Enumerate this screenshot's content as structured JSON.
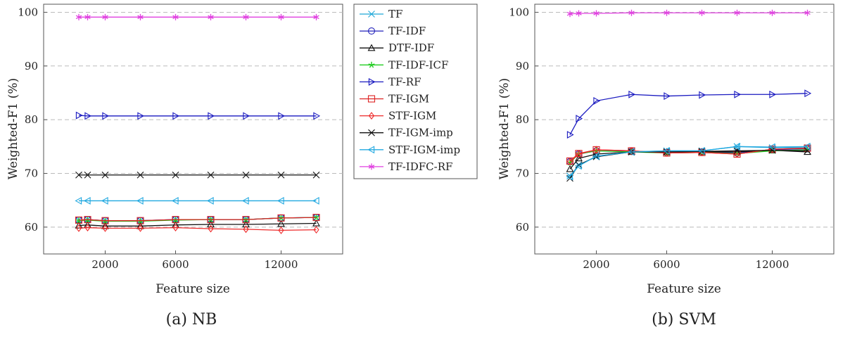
{
  "colors": {
    "TF": "#1ea7d8",
    "TF-IDF": "#2222bb",
    "DTF-IDF": "#111111",
    "TF-IDF-ICF": "#22cc22",
    "TF-RF": "#1a1ac0",
    "TF-IGM": "#dd2222",
    "STF-IGM": "#ee2a2a",
    "TF-IGM-imp": "#111111",
    "STF-IGM-imp": "#20a8e0",
    "TF-IDFC-RF": "#e040e0"
  },
  "legend": {
    "entries": [
      {
        "name": "TF",
        "marker": "x"
      },
      {
        "name": "TF-IDF",
        "marker": "circle"
      },
      {
        "name": "DTF-IDF",
        "marker": "triangle-up"
      },
      {
        "name": "TF-IDF-ICF",
        "marker": "star"
      },
      {
        "name": "TF-RF",
        "marker": "triangle-right"
      },
      {
        "name": "TF-IGM",
        "marker": "square"
      },
      {
        "name": "STF-IGM",
        "marker": "diamond"
      },
      {
        "name": "TF-IGM-imp",
        "marker": "x"
      },
      {
        "name": "STF-IGM-imp",
        "marker": "triangle-left"
      },
      {
        "name": "TF-IDFC-RF",
        "marker": "asterisk"
      }
    ]
  },
  "chart_data": [
    {
      "type": "line",
      "caption": "(a) NB",
      "xlabel": "Feature size",
      "ylabel": "Weighted-F1 (%)",
      "xlim": [
        -1500,
        15500
      ],
      "ylim": [
        55,
        101.5
      ],
      "xticks": [
        2000,
        6000,
        12000
      ],
      "yticks": [
        60,
        70,
        80,
        90,
        100
      ],
      "grid": "horizontal-dashed",
      "x": [
        500,
        1000,
        2000,
        4000,
        6000,
        8000,
        10000,
        12000,
        14000
      ],
      "series": [
        {
          "name": "TF",
          "marker": "x",
          "values": [
            61.3,
            61.4,
            61.2,
            61.2,
            61.4,
            61.4,
            61.4,
            61.7,
            61.8
          ]
        },
        {
          "name": "TF-IDF",
          "marker": "circle",
          "values": [
            61.3,
            61.4,
            61.2,
            61.2,
            61.4,
            61.4,
            61.4,
            61.7,
            61.8
          ]
        },
        {
          "name": "DTF-IDF",
          "marker": "triangle-up",
          "values": [
            60.3,
            60.4,
            60.2,
            60.2,
            60.4,
            60.5,
            60.5,
            60.6,
            60.7
          ]
        },
        {
          "name": "TF-IDF-ICF",
          "marker": "star",
          "values": [
            61.2,
            61.3,
            61.1,
            61.1,
            61.3,
            61.4,
            61.4,
            61.7,
            61.8
          ]
        },
        {
          "name": "TF-RF",
          "marker": "triangle-right",
          "values": [
            80.8,
            80.7,
            80.7,
            80.7,
            80.7,
            80.7,
            80.7,
            80.7,
            80.7
          ]
        },
        {
          "name": "TF-IGM",
          "marker": "square",
          "values": [
            61.3,
            61.4,
            61.2,
            61.2,
            61.4,
            61.4,
            61.4,
            61.7,
            61.8
          ]
        },
        {
          "name": "STF-IGM",
          "marker": "diamond",
          "values": [
            59.8,
            59.9,
            59.8,
            59.8,
            59.9,
            59.7,
            59.6,
            59.4,
            59.5
          ]
        },
        {
          "name": "TF-IGM-imp",
          "marker": "x",
          "values": [
            69.7,
            69.7,
            69.7,
            69.7,
            69.7,
            69.7,
            69.7,
            69.7,
            69.7
          ]
        },
        {
          "name": "STF-IGM-imp",
          "marker": "triangle-left",
          "values": [
            64.9,
            64.9,
            64.9,
            64.9,
            64.9,
            64.9,
            64.9,
            64.9,
            64.9
          ]
        },
        {
          "name": "TF-IDFC-RF",
          "marker": "asterisk",
          "values": [
            99.1,
            99.1,
            99.1,
            99.1,
            99.1,
            99.1,
            99.1,
            99.1,
            99.1
          ]
        }
      ]
    },
    {
      "type": "line",
      "caption": "(b) SVM",
      "xlabel": "Feature size",
      "ylabel": "Weighted-F1 (%)",
      "xlim": [
        -1500,
        15500
      ],
      "ylim": [
        55,
        101.5
      ],
      "xticks": [
        2000,
        6000,
        12000
      ],
      "yticks": [
        60,
        70,
        80,
        90,
        100
      ],
      "grid": "horizontal-dashed",
      "x": [
        500,
        1000,
        2000,
        4000,
        6000,
        8000,
        10000,
        12000,
        14000
      ],
      "series": [
        {
          "name": "TF",
          "marker": "x",
          "values": [
            69.5,
            71.5,
            73.2,
            74.0,
            74.2,
            74.2,
            75.0,
            74.8,
            74.8
          ]
        },
        {
          "name": "TF-IDF",
          "marker": "circle",
          "values": [
            72.2,
            73.6,
            74.2,
            74.1,
            73.9,
            74.0,
            73.8,
            74.4,
            74.6
          ]
        },
        {
          "name": "DTF-IDF",
          "marker": "triangle-up",
          "values": [
            70.8,
            72.8,
            73.6,
            74.0,
            74.0,
            74.0,
            74.0,
            74.3,
            74.0
          ]
        },
        {
          "name": "TF-IDF-ICF",
          "marker": "star",
          "values": [
            72.0,
            73.6,
            74.2,
            74.0,
            73.8,
            73.9,
            73.7,
            74.2,
            74.4
          ]
        },
        {
          "name": "TF-RF",
          "marker": "triangle-right",
          "values": [
            77.2,
            80.2,
            83.5,
            84.7,
            84.4,
            84.6,
            84.7,
            84.7,
            84.9
          ]
        },
        {
          "name": "TF-IGM",
          "marker": "square",
          "values": [
            72.3,
            73.7,
            74.4,
            74.2,
            73.8,
            73.9,
            73.6,
            74.5,
            74.7
          ]
        },
        {
          "name": "STF-IGM",
          "marker": "diamond",
          "values": [
            72.2,
            73.6,
            74.4,
            74.2,
            73.8,
            73.9,
            73.6,
            74.5,
            74.7
          ]
        },
        {
          "name": "TF-IGM-imp",
          "marker": "x",
          "values": [
            69.1,
            71.6,
            73.1,
            74.0,
            74.0,
            74.1,
            74.2,
            74.3,
            74.2
          ]
        },
        {
          "name": "STF-IGM-imp",
          "marker": "triangle-left",
          "values": [
            69.4,
            71.4,
            73.2,
            74.0,
            74.2,
            74.2,
            75.0,
            74.9,
            75.0
          ]
        },
        {
          "name": "TF-IDFC-RF",
          "marker": "asterisk",
          "values": [
            99.7,
            99.8,
            99.8,
            99.9,
            99.9,
            99.9,
            99.9,
            99.9,
            99.9
          ]
        }
      ]
    }
  ]
}
